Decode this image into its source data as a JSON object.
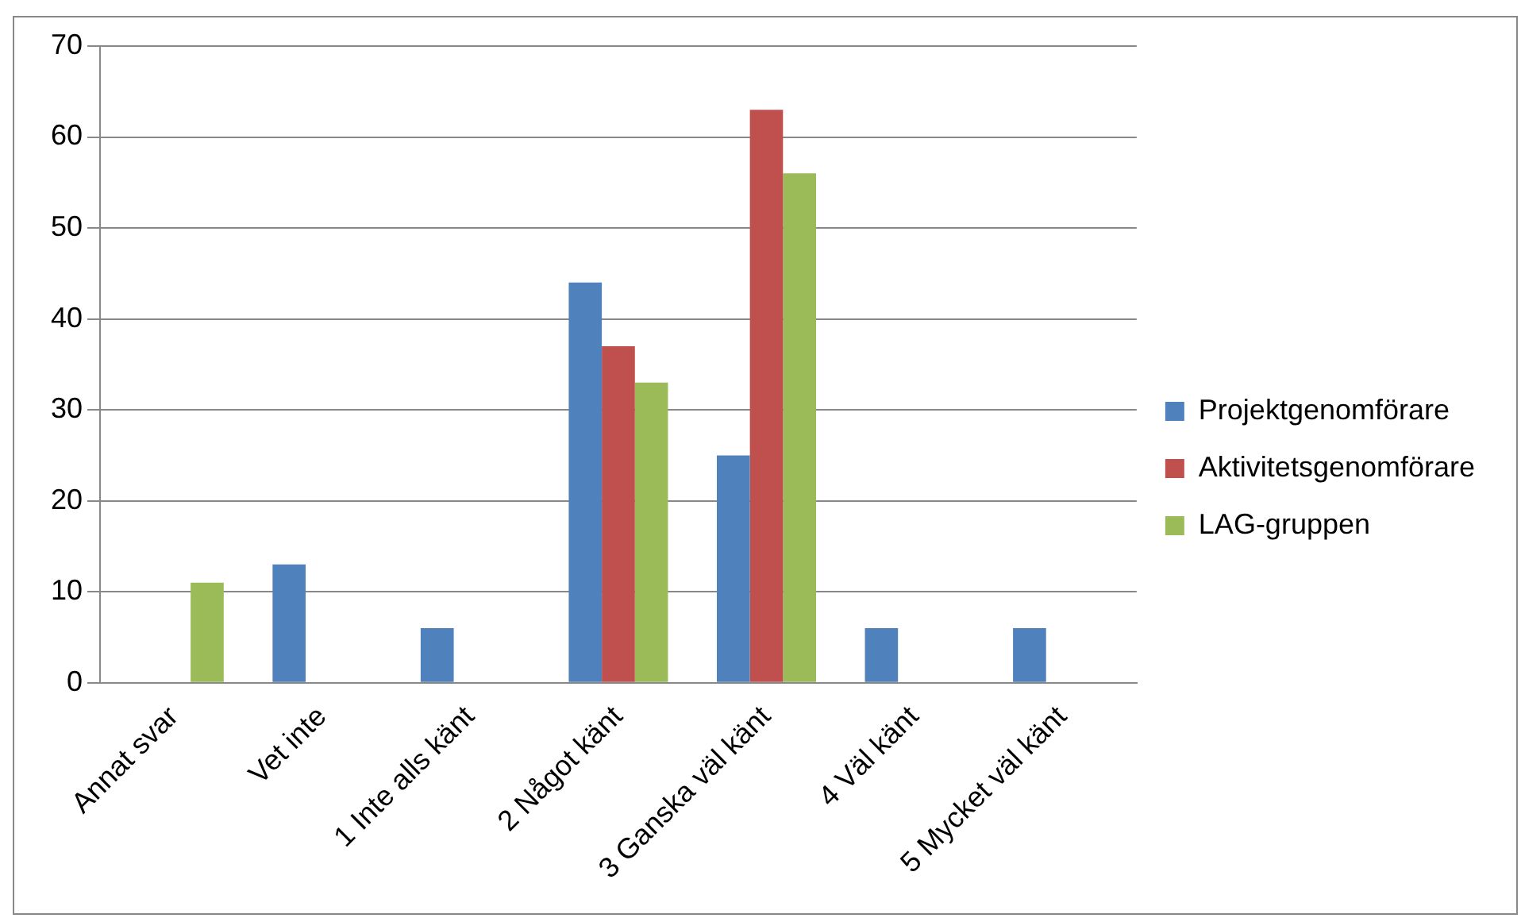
{
  "chart_data": {
    "type": "bar",
    "categories": [
      "Annat svar",
      "Vet inte",
      "1 Inte alls känt",
      "2 Något känt",
      "3 Ganska väl känt",
      "4 Väl känt",
      "5 Mycket väl känt"
    ],
    "series": [
      {
        "name": "Projektgenomförare",
        "color": "#4f81bd",
        "values": [
          0,
          13,
          6,
          44,
          25,
          6,
          6
        ]
      },
      {
        "name": "Aktivitetsgenomförare",
        "color": "#c0504d",
        "values": [
          0,
          0,
          0,
          37,
          63,
          0,
          0
        ]
      },
      {
        "name": "LAG-gruppen",
        "color": "#9bbb59",
        "values": [
          11,
          0,
          0,
          33,
          56,
          0,
          0
        ]
      }
    ],
    "ylim": [
      0,
      70
    ],
    "yticks": [
      0,
      10,
      20,
      30,
      40,
      50,
      60,
      70
    ],
    "grid": "y",
    "legend": "right"
  }
}
